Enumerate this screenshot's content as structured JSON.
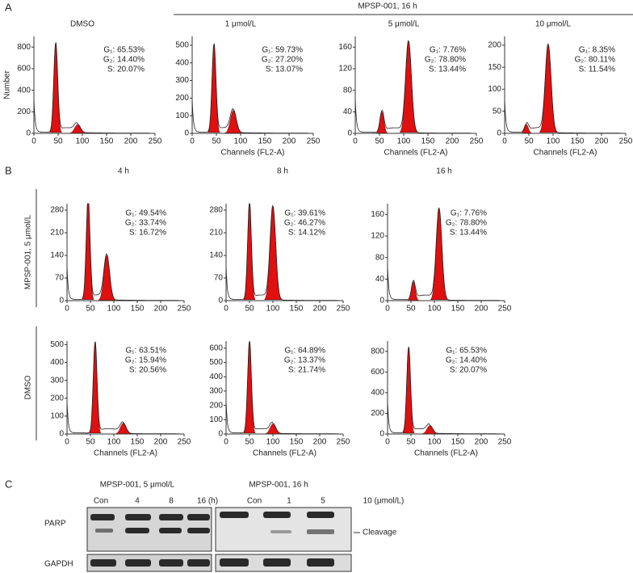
{
  "panel_a": {
    "label": "A",
    "header": "MPSP-001, 16 h",
    "y_label": "Number",
    "x_label": "Channels (FL2-A)",
    "plots": [
      {
        "title": "DMSO",
        "xlim": [
          0,
          250
        ],
        "xticks": [
          0,
          50,
          100,
          150,
          200,
          250
        ],
        "ylim": [
          0,
          900
        ],
        "yticks": [
          0,
          200,
          400,
          600,
          800
        ],
        "peaks": [
          [
            45,
            830
          ],
          [
            90,
            80
          ]
        ],
        "stats": [
          "G₁: 65.53%",
          "G₂: 14.40%",
          "S: 20.07%"
        ]
      },
      {
        "title": "1 μmol/L",
        "xlim": [
          0,
          250
        ],
        "xticks": [
          0,
          50,
          100,
          150,
          200,
          250
        ],
        "ylim": [
          0,
          550
        ],
        "yticks": [
          0,
          100,
          200,
          300,
          400,
          500
        ],
        "peaks": [
          [
            45,
            500
          ],
          [
            85,
            130
          ]
        ],
        "stats": [
          "G₁: 59.73%",
          "G₂: 27.20%",
          "S: 13.07%"
        ]
      },
      {
        "title": "5 μmol/L",
        "xlim": [
          0,
          250
        ],
        "xticks": [
          0,
          50,
          100,
          150,
          200,
          250
        ],
        "ylim": [
          0,
          180
        ],
        "yticks": [
          0,
          40,
          80,
          120,
          160
        ],
        "peaks": [
          [
            55,
            40
          ],
          [
            110,
            170
          ]
        ],
        "stats": [
          "G₁: 7.76%",
          "G₂: 78.80%",
          "S: 13.44%"
        ]
      },
      {
        "title": "10 μmol/L",
        "xlim": [
          0,
          250
        ],
        "xticks": [
          0,
          50,
          100,
          150,
          200,
          250
        ],
        "ylim": [
          0,
          220
        ],
        "yticks": [
          0,
          50,
          100,
          150,
          200
        ],
        "peaks": [
          [
            45,
            20
          ],
          [
            90,
            200
          ]
        ],
        "stats": [
          "G₁: 8.35%",
          "G₂: 80.11%",
          "S: 11.54%"
        ]
      }
    ]
  },
  "panel_b": {
    "label": "B",
    "columns": [
      "4 h",
      "8 h",
      "16 h"
    ],
    "x_label": "Channels (FL2-A)",
    "rows": [
      {
        "label": "MPSP-001, 5 μmol/L",
        "plots": [
          {
            "xlim": [
              0,
              250
            ],
            "xticks": [
              0,
              50,
              100,
              150,
              200,
              250
            ],
            "ylim": [
              0,
              300
            ],
            "yticks": [
              0,
              70,
              140,
              210,
              280
            ],
            "peaks": [
              [
                45,
                315
              ],
              [
                85,
                140
              ]
            ],
            "stats": [
              "G₁: 49.54%",
              "G₂: 33.74%",
              "S: 16.72%"
            ]
          },
          {
            "xlim": [
              0,
              250
            ],
            "xticks": [
              0,
              50,
              100,
              150,
              200,
              250
            ],
            "ylim": [
              0,
              300
            ],
            "yticks": [
              0,
              70,
              140,
              210,
              280
            ],
            "peaks": [
              [
                50,
                300
              ],
              [
                100,
                290
              ]
            ],
            "stats": [
              "G₁: 39.61%",
              "G₂: 46.27%",
              "S: 14.12%"
            ]
          },
          {
            "xlim": [
              0,
              250
            ],
            "xticks": [
              0,
              50,
              100,
              150,
              200,
              250
            ],
            "ylim": [
              0,
              180
            ],
            "yticks": [
              0,
              40,
              80,
              120,
              160
            ],
            "peaks": [
              [
                55,
                35
              ],
              [
                110,
                170
              ]
            ],
            "stats": [
              "G₁: 7.76%",
              "G₂: 78.80%",
              "S: 13.44%"
            ]
          }
        ]
      },
      {
        "label": "DMSO",
        "plots": [
          {
            "xlim": [
              0,
              250
            ],
            "xticks": [
              0,
              50,
              100,
              150,
              200,
              250
            ],
            "ylim": [
              0,
              520
            ],
            "yticks": [
              0,
              100,
              200,
              300,
              400,
              500
            ],
            "peaks": [
              [
                60,
                510
              ],
              [
                120,
                60
              ]
            ],
            "stats": [
              "G₁: 63.51%",
              "G₂: 15.94%",
              "S: 20.56%"
            ]
          },
          {
            "xlim": [
              0,
              250
            ],
            "xticks": [
              0,
              50,
              100,
              150,
              200,
              250
            ],
            "ylim": [
              0,
              650
            ],
            "yticks": [
              0,
              100,
              200,
              300,
              400,
              500,
              600
            ],
            "peaks": [
              [
                50,
                640
              ],
              [
                100,
                70
              ]
            ],
            "stats": [
              "G₁: 64.89%",
              "G₂: 13.37%",
              "S: 21.74%"
            ]
          },
          {
            "xlim": [
              0,
              250
            ],
            "xticks": [
              0,
              50,
              100,
              150,
              200,
              250
            ],
            "ylim": [
              0,
              900
            ],
            "yticks": [
              0,
              200,
              400,
              600,
              800
            ],
            "peaks": [
              [
                45,
                830
              ],
              [
                90,
                80
              ]
            ],
            "stats": [
              "G₁: 65.53%",
              "G₂: 14.40%",
              "S: 20.07%"
            ]
          }
        ]
      }
    ]
  },
  "panel_c": {
    "label": "C",
    "left_header": "MPSP-001, 5 μmol/L",
    "left_lanes": [
      "Con",
      "4",
      "8",
      "16 (h)"
    ],
    "right_header": "MPSP-001, 16 h",
    "right_lanes": [
      "Con",
      "1",
      "5",
      "10 (μmol/L)"
    ],
    "rows": [
      "PARP",
      "GAPDH"
    ],
    "annotation": "Cleavage"
  }
}
